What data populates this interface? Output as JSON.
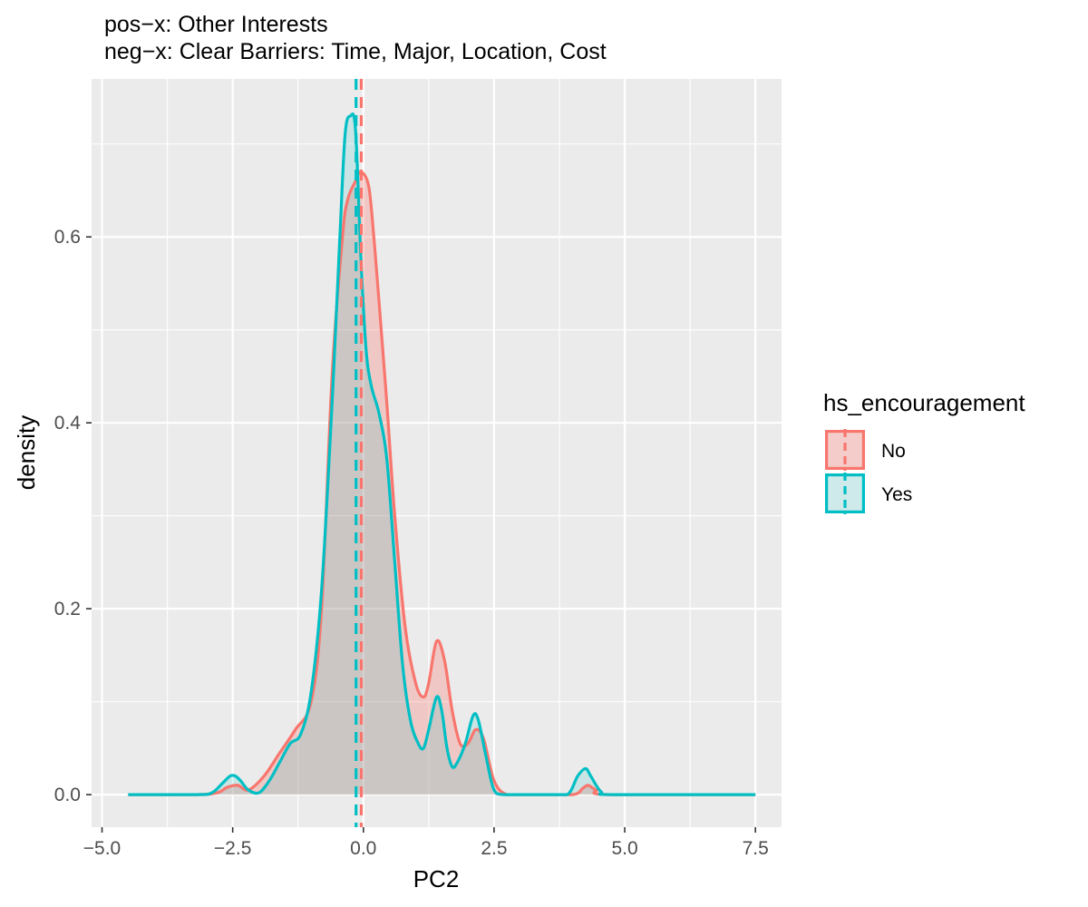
{
  "chart_data": {
    "type": "area",
    "title_lines": [
      "pos−x: Other Interests",
      "neg−x: Clear Barriers: Time, Major, Location, Cost"
    ],
    "xlabel": "PC2",
    "ylabel": "density",
    "xlim": [
      -5.2,
      8.0
    ],
    "ylim": [
      -0.035,
      0.77
    ],
    "x_ticks": [
      -5.0,
      -2.5,
      0.0,
      2.5,
      5.0,
      7.5
    ],
    "x_tick_labels": [
      "−5.0",
      "−2.5",
      "0.0",
      "2.5",
      "5.0",
      "7.5"
    ],
    "y_ticks": [
      0.0,
      0.2,
      0.4,
      0.6
    ],
    "y_tick_labels": [
      "0.0",
      "0.2",
      "0.4",
      "0.6"
    ],
    "grid": true,
    "legend": {
      "title": "hs_encouragement",
      "placement": "right"
    },
    "series": [
      {
        "name": "No",
        "color": "#F8766D",
        "fill": "rgba(248,118,109,0.30)",
        "mean": -0.04,
        "x": [
          -4.5,
          -3.2,
          -2.8,
          -2.6,
          -2.4,
          -2.2,
          -1.9,
          -1.6,
          -1.3,
          -1.0,
          -0.8,
          -0.6,
          -0.4,
          -0.3,
          -0.15,
          -0.05,
          0.1,
          0.2,
          0.3,
          0.45,
          0.6,
          0.8,
          1.0,
          1.15,
          1.25,
          1.4,
          1.55,
          1.7,
          1.85,
          2.0,
          2.15,
          2.3,
          2.5,
          2.75,
          3.2,
          4.0,
          4.2,
          4.3,
          4.45,
          4.7,
          7.5
        ],
        "y": [
          0.0,
          0.0,
          0.002,
          0.008,
          0.01,
          0.005,
          0.02,
          0.045,
          0.07,
          0.1,
          0.2,
          0.45,
          0.6,
          0.64,
          0.66,
          0.67,
          0.655,
          0.6,
          0.53,
          0.42,
          0.3,
          0.18,
          0.12,
          0.105,
          0.12,
          0.165,
          0.145,
          0.09,
          0.055,
          0.055,
          0.07,
          0.06,
          0.015,
          0.0,
          0.0,
          0.0,
          0.007,
          0.01,
          0.005,
          0.0,
          0.0
        ]
      },
      {
        "name": "Yes",
        "color": "#00BFC4",
        "fill": "rgba(0,191,196,0.15)",
        "mean": -0.14,
        "x": [
          -4.5,
          -3.2,
          -2.9,
          -2.7,
          -2.55,
          -2.45,
          -2.35,
          -2.2,
          -2.0,
          -1.8,
          -1.6,
          -1.4,
          -1.2,
          -1.0,
          -0.8,
          -0.6,
          -0.45,
          -0.35,
          -0.25,
          -0.15,
          -0.05,
          0.05,
          0.15,
          0.3,
          0.45,
          0.6,
          0.75,
          0.9,
          1.05,
          1.15,
          1.25,
          1.4,
          1.5,
          1.6,
          1.7,
          1.8,
          1.95,
          2.1,
          2.2,
          2.35,
          2.5,
          2.7,
          3.5,
          3.9,
          4.1,
          4.25,
          4.35,
          4.55,
          4.8,
          7.5
        ],
        "y": [
          0.0,
          0.0,
          0.002,
          0.012,
          0.02,
          0.02,
          0.015,
          0.005,
          0.002,
          0.015,
          0.035,
          0.055,
          0.065,
          0.11,
          0.22,
          0.42,
          0.6,
          0.71,
          0.73,
          0.715,
          0.58,
          0.48,
          0.44,
          0.41,
          0.36,
          0.25,
          0.14,
          0.08,
          0.055,
          0.05,
          0.07,
          0.105,
          0.09,
          0.05,
          0.03,
          0.035,
          0.055,
          0.085,
          0.08,
          0.04,
          0.005,
          0.0,
          0.0,
          0.0,
          0.02,
          0.028,
          0.02,
          0.003,
          0.0,
          0.0
        ]
      }
    ]
  }
}
